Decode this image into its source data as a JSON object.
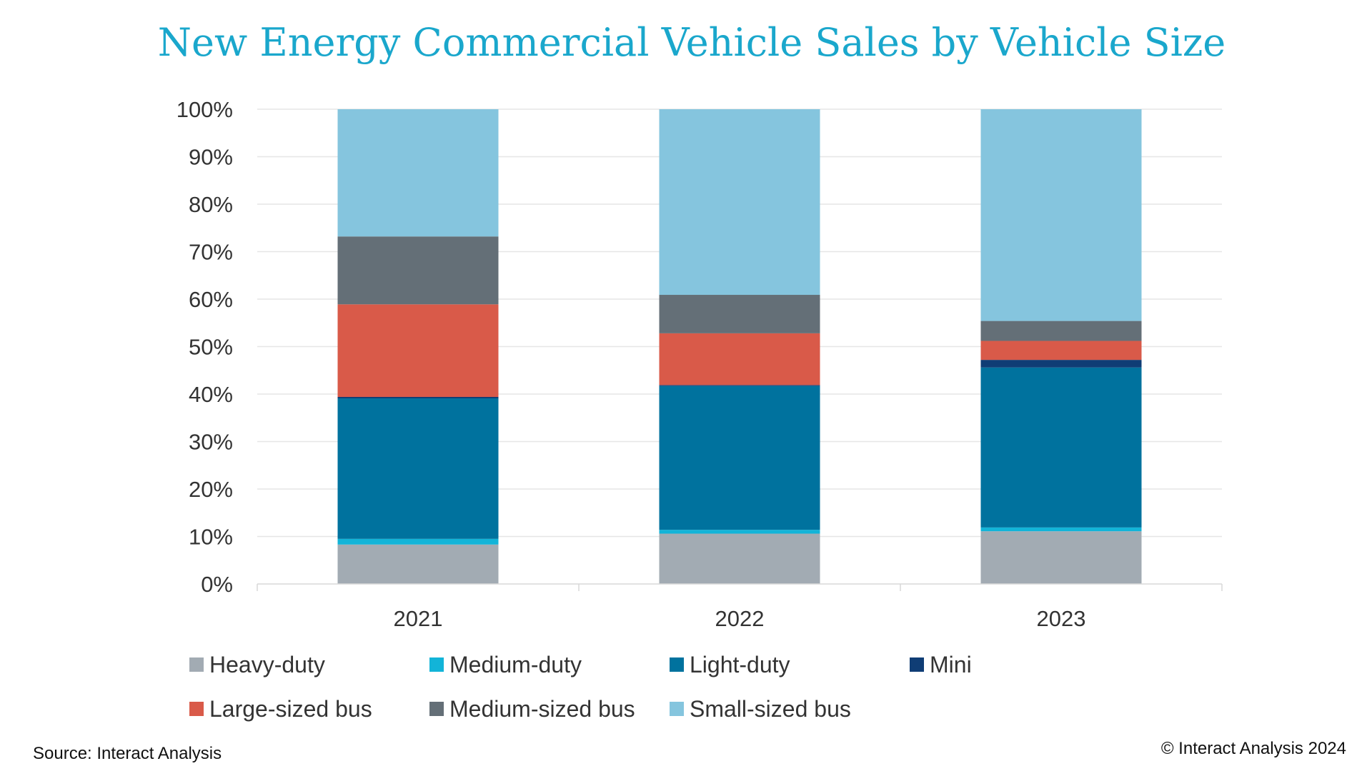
{
  "chart_data": {
    "type": "bar",
    "stacked": true,
    "title": "New Energy Commercial Vehicle Sales by Vehicle Size",
    "xlabel": "",
    "ylabel": "",
    "ylim": [
      0,
      100
    ],
    "y_ticks": [
      "0%",
      "10%",
      "20%",
      "30%",
      "40%",
      "50%",
      "60%",
      "70%",
      "80%",
      "90%",
      "100%"
    ],
    "grid": true,
    "legend_position": "bottom",
    "categories": [
      "2021",
      "2022",
      "2023"
    ],
    "series": [
      {
        "name": "Heavy-duty",
        "color": "#a2abb3",
        "values": [
          8.3,
          10.6,
          11.1
        ]
      },
      {
        "name": "Medium-duty",
        "color": "#12b4d8",
        "values": [
          1.2,
          0.8,
          0.8
        ]
      },
      {
        "name": "Light-duty",
        "color": "#00729e",
        "values": [
          29.6,
          30.3,
          33.7
        ]
      },
      {
        "name": "Mini",
        "color": "#0f3d75",
        "values": [
          0.3,
          0.2,
          1.6
        ]
      },
      {
        "name": "Large-sized bus",
        "color": "#d95a49",
        "values": [
          19.5,
          10.9,
          4.0
        ]
      },
      {
        "name": "Medium-sized bus",
        "color": "#646f77",
        "values": [
          14.3,
          8.1,
          4.2
        ]
      },
      {
        "name": "Small-sized bus",
        "color": "#85c5de",
        "values": [
          26.8,
          39.1,
          44.6
        ]
      }
    ]
  },
  "footer": {
    "source": "Source: Interact Analysis",
    "copyright": "© Interact Analysis 2024"
  }
}
